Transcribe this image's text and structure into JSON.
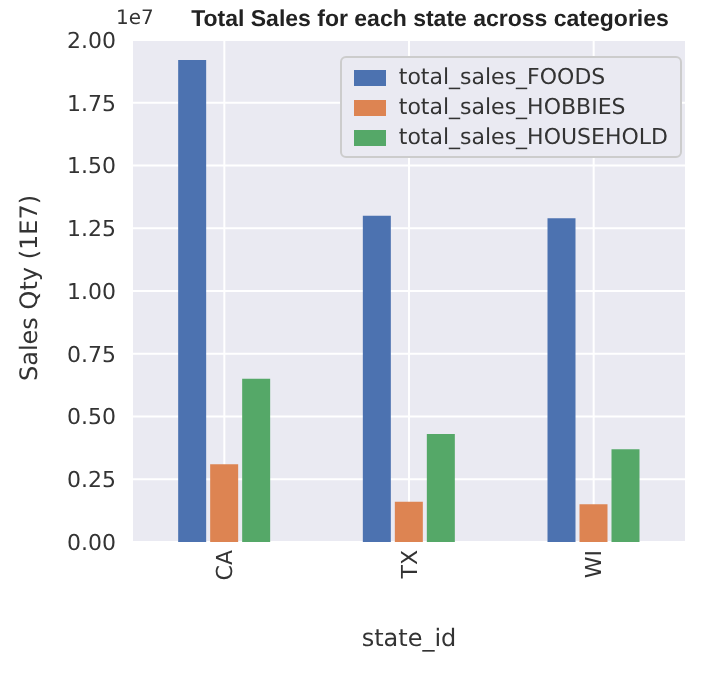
{
  "chart_data": {
    "type": "bar",
    "title": "Total Sales for each state across categories",
    "xlabel": "state_id",
    "ylabel": "Sales Qty (1E7)",
    "annotations": [
      "1e7"
    ],
    "categories": [
      "CA",
      "TX",
      "WI"
    ],
    "series": [
      {
        "name": "total_sales_FOODS",
        "color": "#4c72b0",
        "values": [
          1.92,
          1.3,
          1.29
        ]
      },
      {
        "name": "total_sales_HOBBIES",
        "color": "#dd8452",
        "values": [
          0.31,
          0.16,
          0.15
        ]
      },
      {
        "name": "total_sales_HOUSEHOLD",
        "color": "#55a868",
        "values": [
          0.65,
          0.43,
          0.37
        ]
      }
    ],
    "ylim": [
      0,
      2
    ],
    "yticks": [
      {
        "value": 0,
        "label": "0.00"
      },
      {
        "value": 0.25,
        "label": "0.25"
      },
      {
        "value": 0.5,
        "label": "0.50"
      },
      {
        "value": 0.75,
        "label": "0.75"
      },
      {
        "value": 1,
        "label": "1.00"
      },
      {
        "value": 1.25,
        "label": "1.25"
      },
      {
        "value": 1.5,
        "label": "1.50"
      },
      {
        "value": 1.75,
        "label": "1.75"
      },
      {
        "value": 2,
        "label": "2.00"
      }
    ],
    "grid": true,
    "legend": "top right"
  }
}
